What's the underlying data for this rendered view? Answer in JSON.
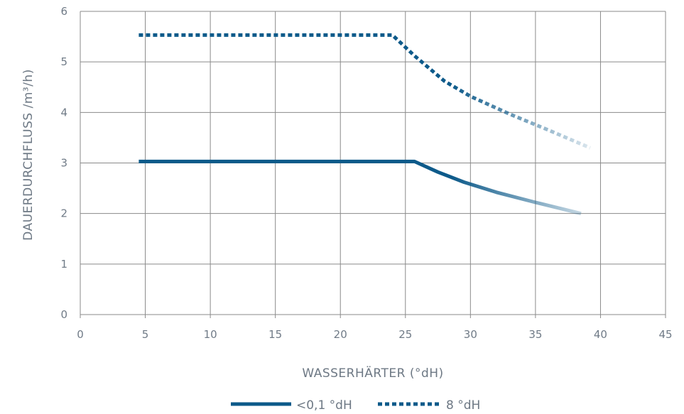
{
  "chart_data": {
    "type": "line",
    "xlabel": "WASSERHÄRTER (°dH)",
    "ylabel": "DAUERDURCHFLUSS /m³/h)",
    "xlim": [
      0,
      45
    ],
    "ylim": [
      0,
      6
    ],
    "xticks": [
      0,
      5,
      10,
      15,
      20,
      25,
      30,
      35,
      40,
      45
    ],
    "yticks": [
      0,
      1,
      2,
      3,
      4,
      5,
      6
    ],
    "grid": true,
    "legend_position": "bottom-center",
    "series": [
      {
        "name": "<0,1 °dH",
        "style": "solid",
        "color": "#0d5a8a",
        "x": [
          4.5,
          25.7,
          27.5,
          29.5,
          32,
          35,
          38.5
        ],
        "y": [
          3.03,
          3.03,
          2.82,
          2.62,
          2.42,
          2.22,
          2.0
        ]
      },
      {
        "name": "8 °dH",
        "style": "dotted",
        "color": "#0d5a8a",
        "x": [
          4.5,
          24,
          25.7,
          28,
          30,
          33,
          36,
          39.2
        ],
        "y": [
          5.53,
          5.53,
          5.12,
          4.62,
          4.32,
          3.97,
          3.65,
          3.3
        ]
      }
    ]
  }
}
